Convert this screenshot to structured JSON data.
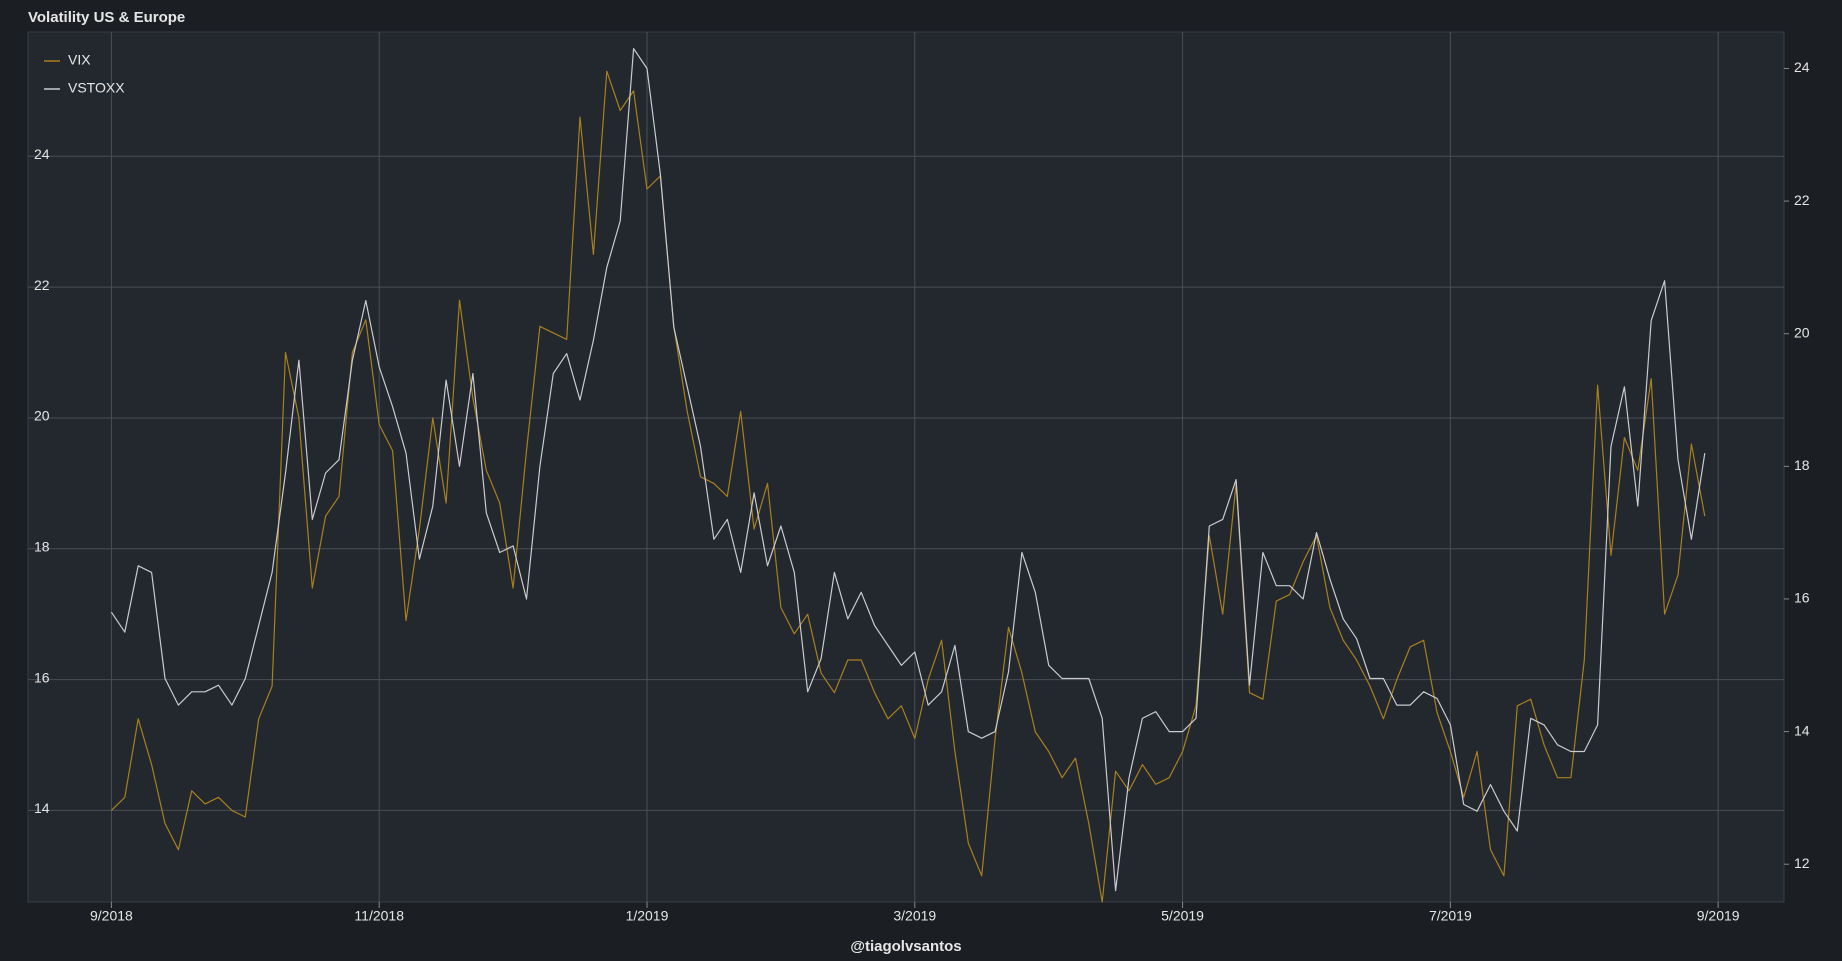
{
  "chart_data": {
    "type": "line",
    "title": "Volatility US & Europe",
    "footer": "@tiagolvsantos",
    "categories": [
      "9/2018",
      null,
      null,
      null,
      null,
      null,
      null,
      null,
      null,
      null,
      null,
      null,
      null,
      null,
      null,
      null,
      null,
      null,
      null,
      null,
      "11/2018",
      null,
      null,
      null,
      null,
      null,
      null,
      null,
      null,
      null,
      null,
      null,
      null,
      null,
      null,
      null,
      null,
      null,
      null,
      null,
      "1/2019",
      null,
      null,
      null,
      null,
      null,
      null,
      null,
      null,
      null,
      null,
      null,
      null,
      null,
      null,
      null,
      null,
      null,
      null,
      null,
      "3/2019",
      null,
      null,
      null,
      null,
      null,
      null,
      null,
      null,
      null,
      null,
      null,
      null,
      null,
      null,
      null,
      null,
      null,
      null,
      null,
      "5/2019",
      null,
      null,
      null,
      null,
      null,
      null,
      null,
      null,
      null,
      null,
      null,
      null,
      null,
      null,
      null,
      null,
      null,
      null,
      null,
      "7/2019",
      null,
      null,
      null,
      null,
      null,
      null,
      null,
      null,
      null,
      null,
      null,
      null,
      null,
      null,
      null,
      null,
      null,
      null,
      null,
      "9/2019"
    ],
    "series": [
      {
        "name": "VIX",
        "color": "#a8801f",
        "axis": "y",
        "values": [
          14.0,
          14.2,
          15.4,
          14.7,
          13.8,
          13.4,
          14.3,
          14.1,
          14.2,
          14.0,
          13.9,
          15.4,
          15.9,
          21.0,
          20.0,
          17.4,
          18.5,
          18.8,
          21.0,
          21.5,
          19.9,
          19.5,
          16.9,
          18.3,
          20.0,
          18.7,
          21.8,
          20.3,
          19.2,
          18.7,
          17.4,
          19.5,
          21.4,
          21.3,
          21.2,
          24.6,
          22.5,
          25.3,
          24.7,
          25.0,
          23.5,
          23.7,
          21.4,
          20.1,
          19.1,
          19.0,
          18.8,
          20.1,
          18.3,
          19.0,
          17.1,
          16.7,
          17.0,
          16.1,
          15.8,
          16.3,
          16.3,
          15.8,
          15.4,
          15.6,
          15.1,
          16.0,
          16.6,
          14.9,
          13.5,
          13.0,
          15.1,
          16.8,
          16.1,
          15.2,
          14.9,
          14.5,
          14.8,
          13.8,
          12.6,
          14.6,
          14.3,
          14.7,
          14.4,
          14.5,
          14.9,
          15.6,
          18.2,
          17.0,
          19.0,
          15.8,
          15.7,
          17.2,
          17.3,
          17.8,
          18.2,
          17.1,
          16.6,
          16.3,
          15.9,
          15.4,
          16.0,
          16.5,
          16.6,
          15.5,
          14.9,
          14.2,
          14.9,
          13.4,
          13.0,
          15.6,
          15.7,
          15.0,
          14.5,
          14.5,
          16.3,
          20.5,
          17.9,
          19.7,
          19.2,
          20.6,
          17.0,
          17.6,
          19.6,
          18.5,
          null
        ]
      },
      {
        "name": "VSTOXX",
        "color": "#c9cbcf",
        "axis": "y2",
        "values": [
          15.8,
          15.5,
          16.5,
          16.4,
          14.8,
          14.4,
          14.6,
          14.6,
          14.7,
          14.4,
          14.8,
          15.6,
          16.4,
          17.9,
          19.6,
          17.2,
          17.9,
          18.1,
          19.6,
          20.5,
          19.5,
          18.9,
          18.2,
          16.6,
          17.4,
          19.3,
          18.0,
          19.4,
          17.3,
          16.7,
          16.8,
          16.0,
          18.0,
          19.4,
          19.7,
          19.0,
          19.9,
          21.0,
          21.7,
          24.3,
          24.0,
          22.4,
          20.1,
          19.2,
          18.3,
          16.9,
          17.2,
          16.4,
          17.6,
          16.5,
          17.1,
          16.4,
          14.6,
          15.1,
          16.4,
          15.7,
          16.1,
          15.6,
          15.3,
          15.0,
          15.2,
          14.4,
          14.6,
          15.3,
          14.0,
          13.9,
          14.0,
          14.9,
          16.7,
          16.1,
          15.0,
          14.8,
          14.8,
          14.8,
          14.2,
          11.6,
          13.3,
          14.2,
          14.3,
          14.0,
          14.0,
          14.2,
          17.1,
          17.2,
          17.8,
          14.7,
          16.7,
          16.2,
          16.2,
          16.0,
          17.0,
          16.3,
          15.7,
          15.4,
          14.8,
          14.8,
          14.4,
          14.4,
          14.6,
          14.5,
          14.1,
          12.9,
          12.8,
          13.2,
          12.8,
          12.5,
          14.2,
          14.1,
          13.8,
          13.7,
          13.7,
          14.1,
          18.3,
          19.2,
          17.4,
          20.2,
          20.8,
          18.1,
          16.9,
          18.2,
          null
        ]
      }
    ],
    "ylim": [
      12.6,
      25.9
    ],
    "yticks": [
      14,
      16,
      18,
      20,
      22,
      24
    ],
    "y2lim": [
      11.43,
      24.55
    ],
    "y2ticks": [
      12,
      14,
      16,
      18,
      20,
      22,
      24
    ],
    "grid": true,
    "legend": "upper left"
  }
}
